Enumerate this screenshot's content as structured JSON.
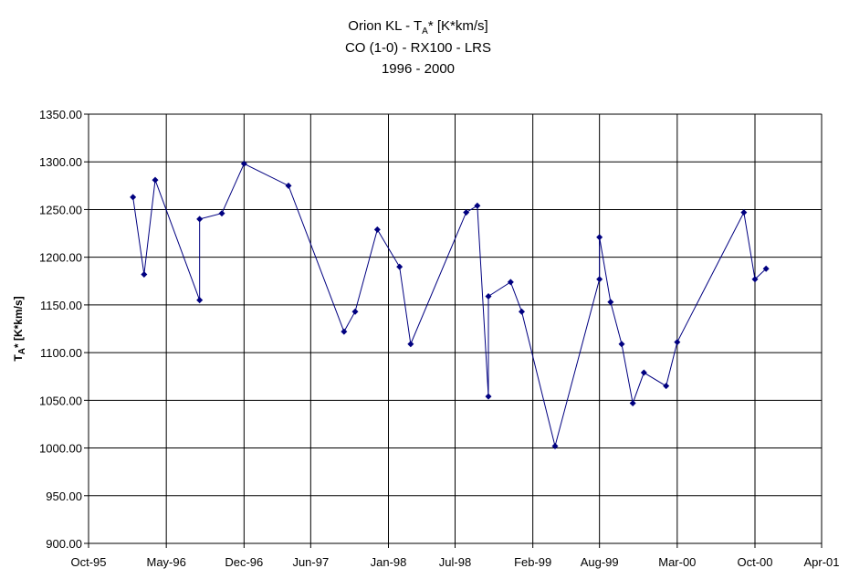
{
  "chart_data": {
    "type": "line",
    "title": [
      [
        "Orion KL - T",
        "A",
        "* [K*km/s]"
      ],
      "CO (1-0) - RX100 - LRS",
      "1996 - 2000"
    ],
    "ylabel": [
      "T",
      "A",
      "* [K*km/s]"
    ],
    "x": [
      "1996-02",
      "1996-03",
      "1996-04",
      "1996-08",
      "1996-08",
      "1996-10",
      "1996-12",
      "1997-04",
      "1997-09",
      "1997-10",
      "1997-12",
      "1998-02",
      "1998-03",
      "1998-08",
      "1998-09",
      "1998-10",
      "1998-10",
      "1998-12",
      "1999-01",
      "1999-04",
      "1999-08",
      "1999-08",
      "1999-09",
      "1999-10",
      "1999-11",
      "1999-12",
      "2000-02",
      "2000-03",
      "2000-09",
      "2000-10",
      "2000-11"
    ],
    "series": [
      {
        "color": "#000080",
        "values": [
          1263,
          1182,
          1281,
          1155,
          1240,
          1246,
          1298,
          1275,
          1122,
          1143,
          1229,
          1190,
          1109,
          1247,
          1254,
          1054,
          1159,
          1174,
          1143,
          1002,
          1177,
          1221,
          1153,
          1109,
          1047,
          1079,
          1065,
          1111,
          1247,
          1177,
          1188
        ]
      }
    ],
    "xlim": [
      "1995-10",
      "2001-04"
    ],
    "xticks": [
      {
        "value": "1995-10",
        "label": "Oct-95"
      },
      {
        "value": "1996-05",
        "label": "May-96"
      },
      {
        "value": "1996-12",
        "label": "Dec-96"
      },
      {
        "value": "1997-06",
        "label": "Jun-97"
      },
      {
        "value": "1998-01",
        "label": "Jan-98"
      },
      {
        "value": "1998-07",
        "label": "Jul-98"
      },
      {
        "value": "1999-02",
        "label": "Feb-99"
      },
      {
        "value": "1999-08",
        "label": "Aug-99"
      },
      {
        "value": "2000-03",
        "label": "Mar-00"
      },
      {
        "value": "2000-10",
        "label": "Oct-00"
      },
      {
        "value": "2001-04",
        "label": "Apr-01"
      }
    ],
    "ylim": [
      900,
      1350
    ],
    "yticks": [
      {
        "value": 900,
        "label": "900.00"
      },
      {
        "value": 950,
        "label": "950.00"
      },
      {
        "value": 1000,
        "label": "1000.00"
      },
      {
        "value": 1050,
        "label": "1050.00"
      },
      {
        "value": 1100,
        "label": "1100.00"
      },
      {
        "value": 1150,
        "label": "1150.00"
      },
      {
        "value": 1200,
        "label": "1200.00"
      },
      {
        "value": 1250,
        "label": "1250.00"
      },
      {
        "value": 1300,
        "label": "1300.00"
      },
      {
        "value": 1350,
        "label": "1350.00"
      }
    ],
    "grid": true
  }
}
